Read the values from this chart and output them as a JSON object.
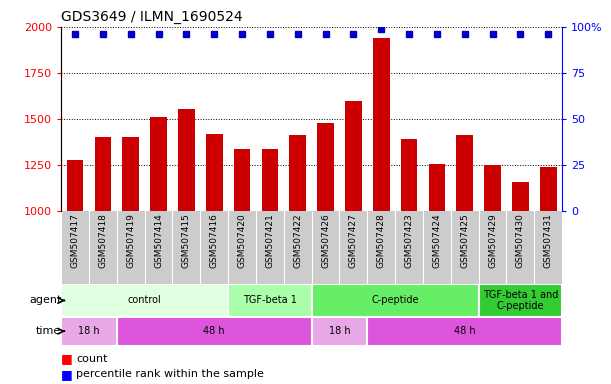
{
  "title": "GDS3649 / ILMN_1690524",
  "samples": [
    "GSM507417",
    "GSM507418",
    "GSM507419",
    "GSM507414",
    "GSM507415",
    "GSM507416",
    "GSM507420",
    "GSM507421",
    "GSM507422",
    "GSM507426",
    "GSM507427",
    "GSM507428",
    "GSM507423",
    "GSM507424",
    "GSM507425",
    "GSM507429",
    "GSM507430",
    "GSM507431"
  ],
  "counts": [
    1280,
    1400,
    1400,
    1510,
    1555,
    1420,
    1340,
    1335,
    1415,
    1480,
    1600,
    1940,
    1390,
    1255,
    1415,
    1250,
    1160,
    1240
  ],
  "percentiles": [
    96,
    96,
    96,
    96,
    96,
    96,
    96,
    96,
    96,
    96,
    96,
    99,
    96,
    96,
    96,
    96,
    96,
    96
  ],
  "bar_color": "#cc0000",
  "dot_color": "#0000cc",
  "ylim_left": [
    1000,
    2000
  ],
  "ylim_right": [
    0,
    100
  ],
  "yticks_left": [
    1000,
    1250,
    1500,
    1750,
    2000
  ],
  "yticks_right": [
    0,
    25,
    50,
    75,
    100
  ],
  "agent_groups": [
    {
      "label": "control",
      "start": 0,
      "end": 6,
      "color": "#e0ffe0"
    },
    {
      "label": "TGF-beta 1",
      "start": 6,
      "end": 9,
      "color": "#aaffaa"
    },
    {
      "label": "C-peptide",
      "start": 9,
      "end": 15,
      "color": "#66ee66"
    },
    {
      "label": "TGF-beta 1 and\nC-peptide",
      "start": 15,
      "end": 18,
      "color": "#33cc33"
    }
  ],
  "time_groups": [
    {
      "label": "18 h",
      "start": 0,
      "end": 2,
      "color": "#e8a8e8"
    },
    {
      "label": "48 h",
      "start": 2,
      "end": 9,
      "color": "#dd55dd"
    },
    {
      "label": "18 h",
      "start": 9,
      "end": 11,
      "color": "#e8a8e8"
    },
    {
      "label": "48 h",
      "start": 11,
      "end": 18,
      "color": "#dd55dd"
    }
  ],
  "xlabel_row_bg": "#cccccc",
  "agent_label": "agent",
  "time_label": "time"
}
